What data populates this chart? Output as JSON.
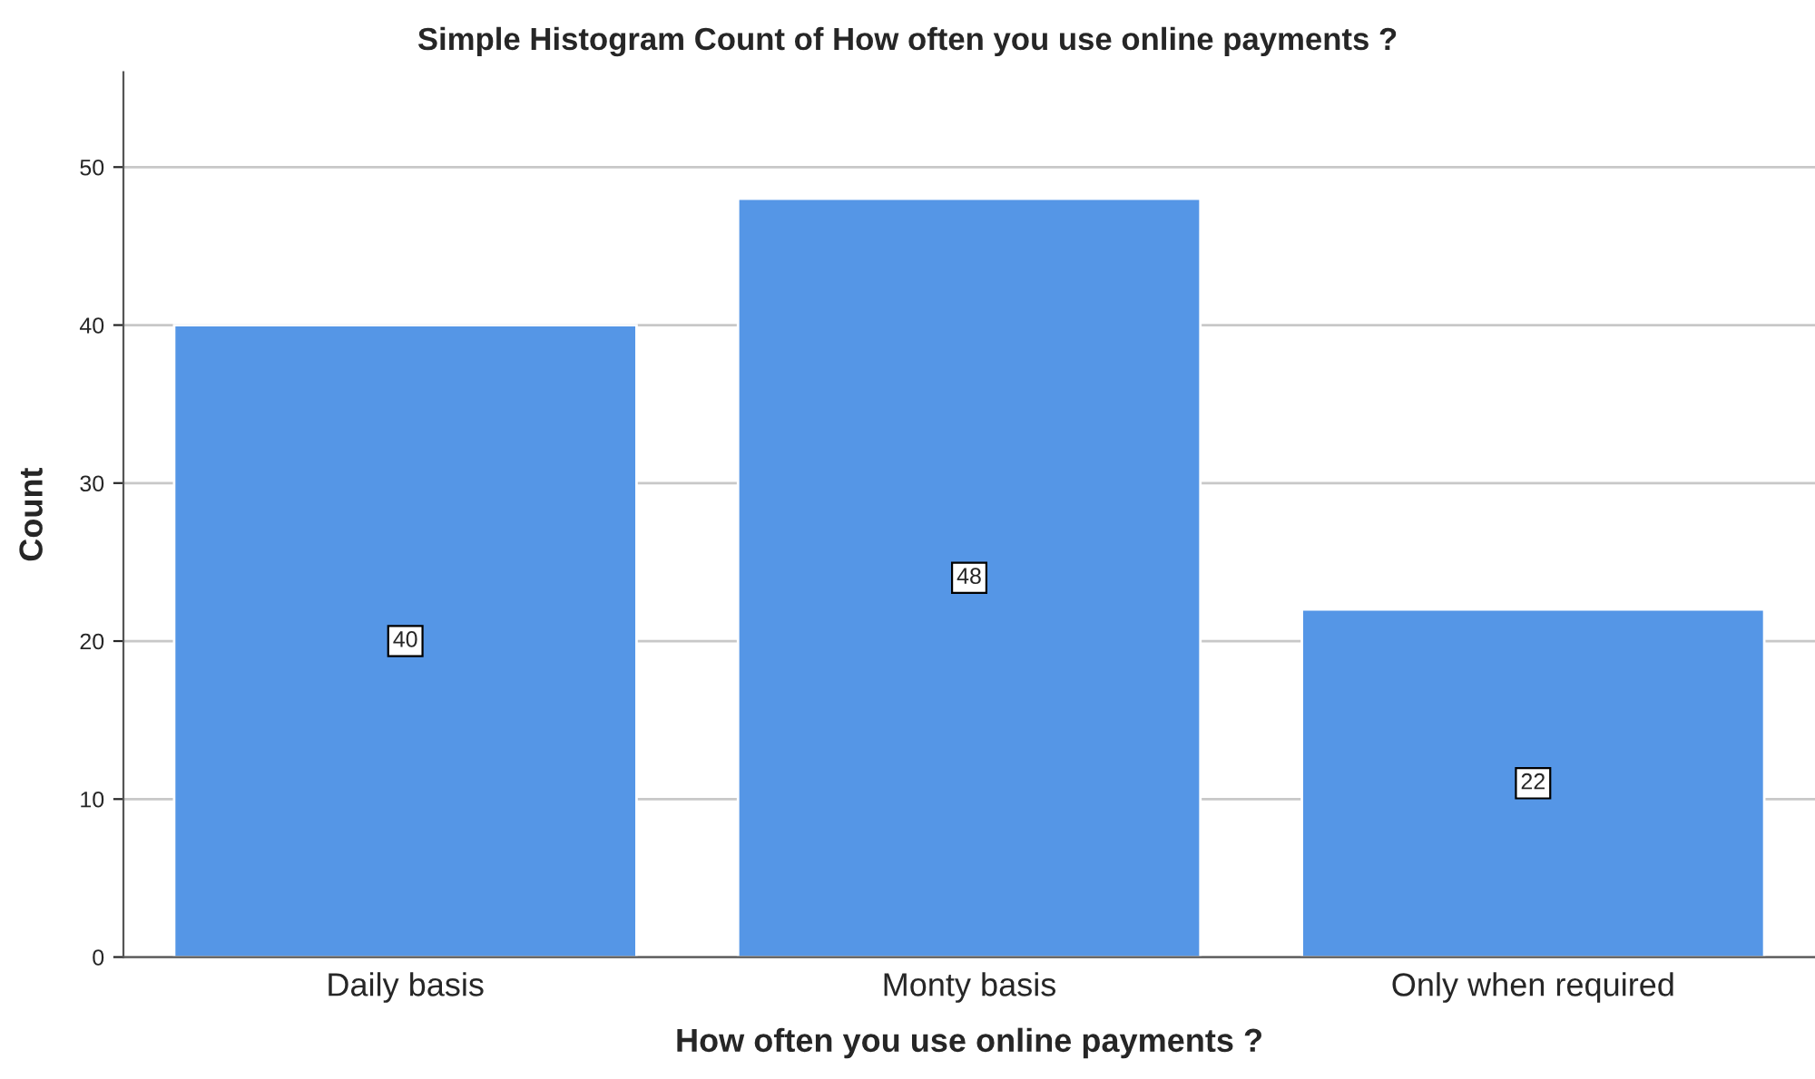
{
  "chart_data": {
    "type": "bar",
    "title": "Simple Histogram Count of How often you use online payments ?",
    "xlabel": "How often you use online payments ?",
    "ylabel": "Count",
    "categories": [
      "Daily basis",
      "Monty basis",
      "Only when required"
    ],
    "values": [
      40,
      48,
      22
    ],
    "color": "#5596e6",
    "ylim": [
      0,
      56
    ],
    "yticks": [
      0,
      10,
      20,
      30,
      40,
      50
    ],
    "grid": "y",
    "data_labels": true
  }
}
